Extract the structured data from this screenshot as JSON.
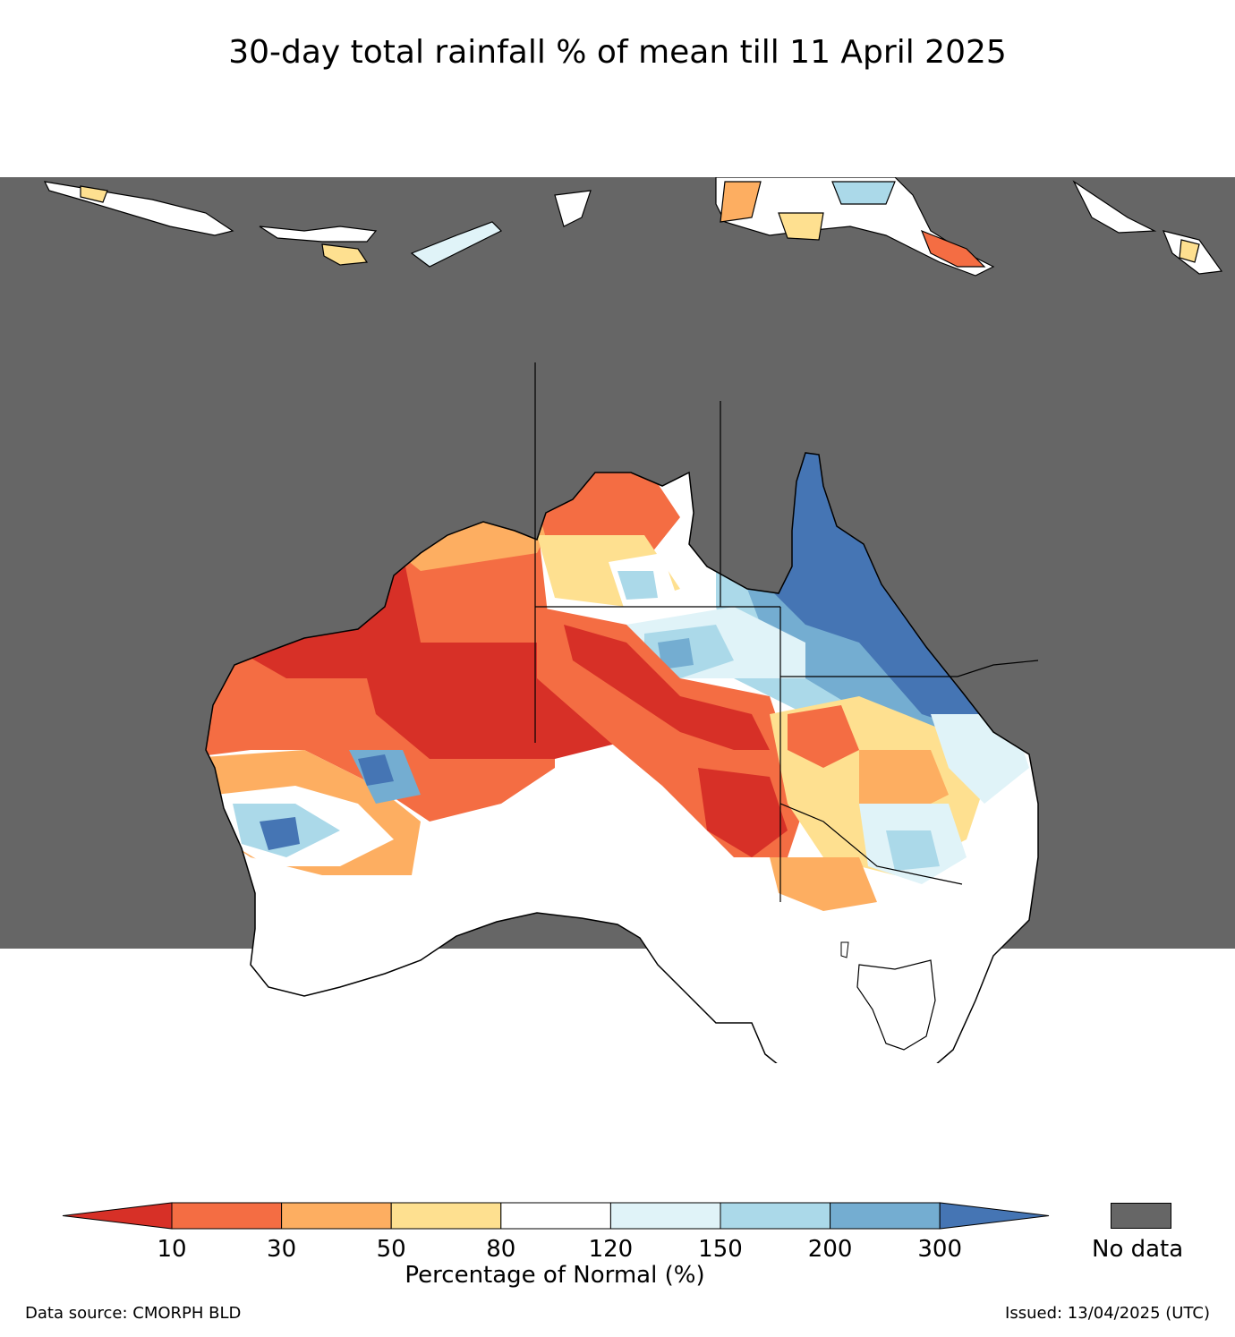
{
  "title": "30-day total rainfall % of mean till 11 April 2025",
  "colorbar": {
    "label": "Percentage of Normal (%)",
    "ticks": [
      "10",
      "30",
      "50",
      "80",
      "120",
      "150",
      "200",
      "300"
    ],
    "bins": [
      {
        "range": "<10",
        "color": "#d73027"
      },
      {
        "range": "10-30",
        "color": "#f46d43"
      },
      {
        "range": "30-50",
        "color": "#fdae61"
      },
      {
        "range": "50-80",
        "color": "#fee090"
      },
      {
        "range": "80-120",
        "color": "#ffffff"
      },
      {
        "range": "120-150",
        "color": "#e0f3f8"
      },
      {
        "range": "150-200",
        "color": "#abd9e9"
      },
      {
        "range": "200-300",
        "color": "#74add1"
      },
      {
        "range": ">300",
        "color": "#4575b4"
      }
    ]
  },
  "no_data": {
    "label": "No data",
    "color": "#666666"
  },
  "footer": {
    "source": "Data source: CMORPH BLD",
    "issued": "Issued: 13/04/2025 (UTC)"
  }
}
